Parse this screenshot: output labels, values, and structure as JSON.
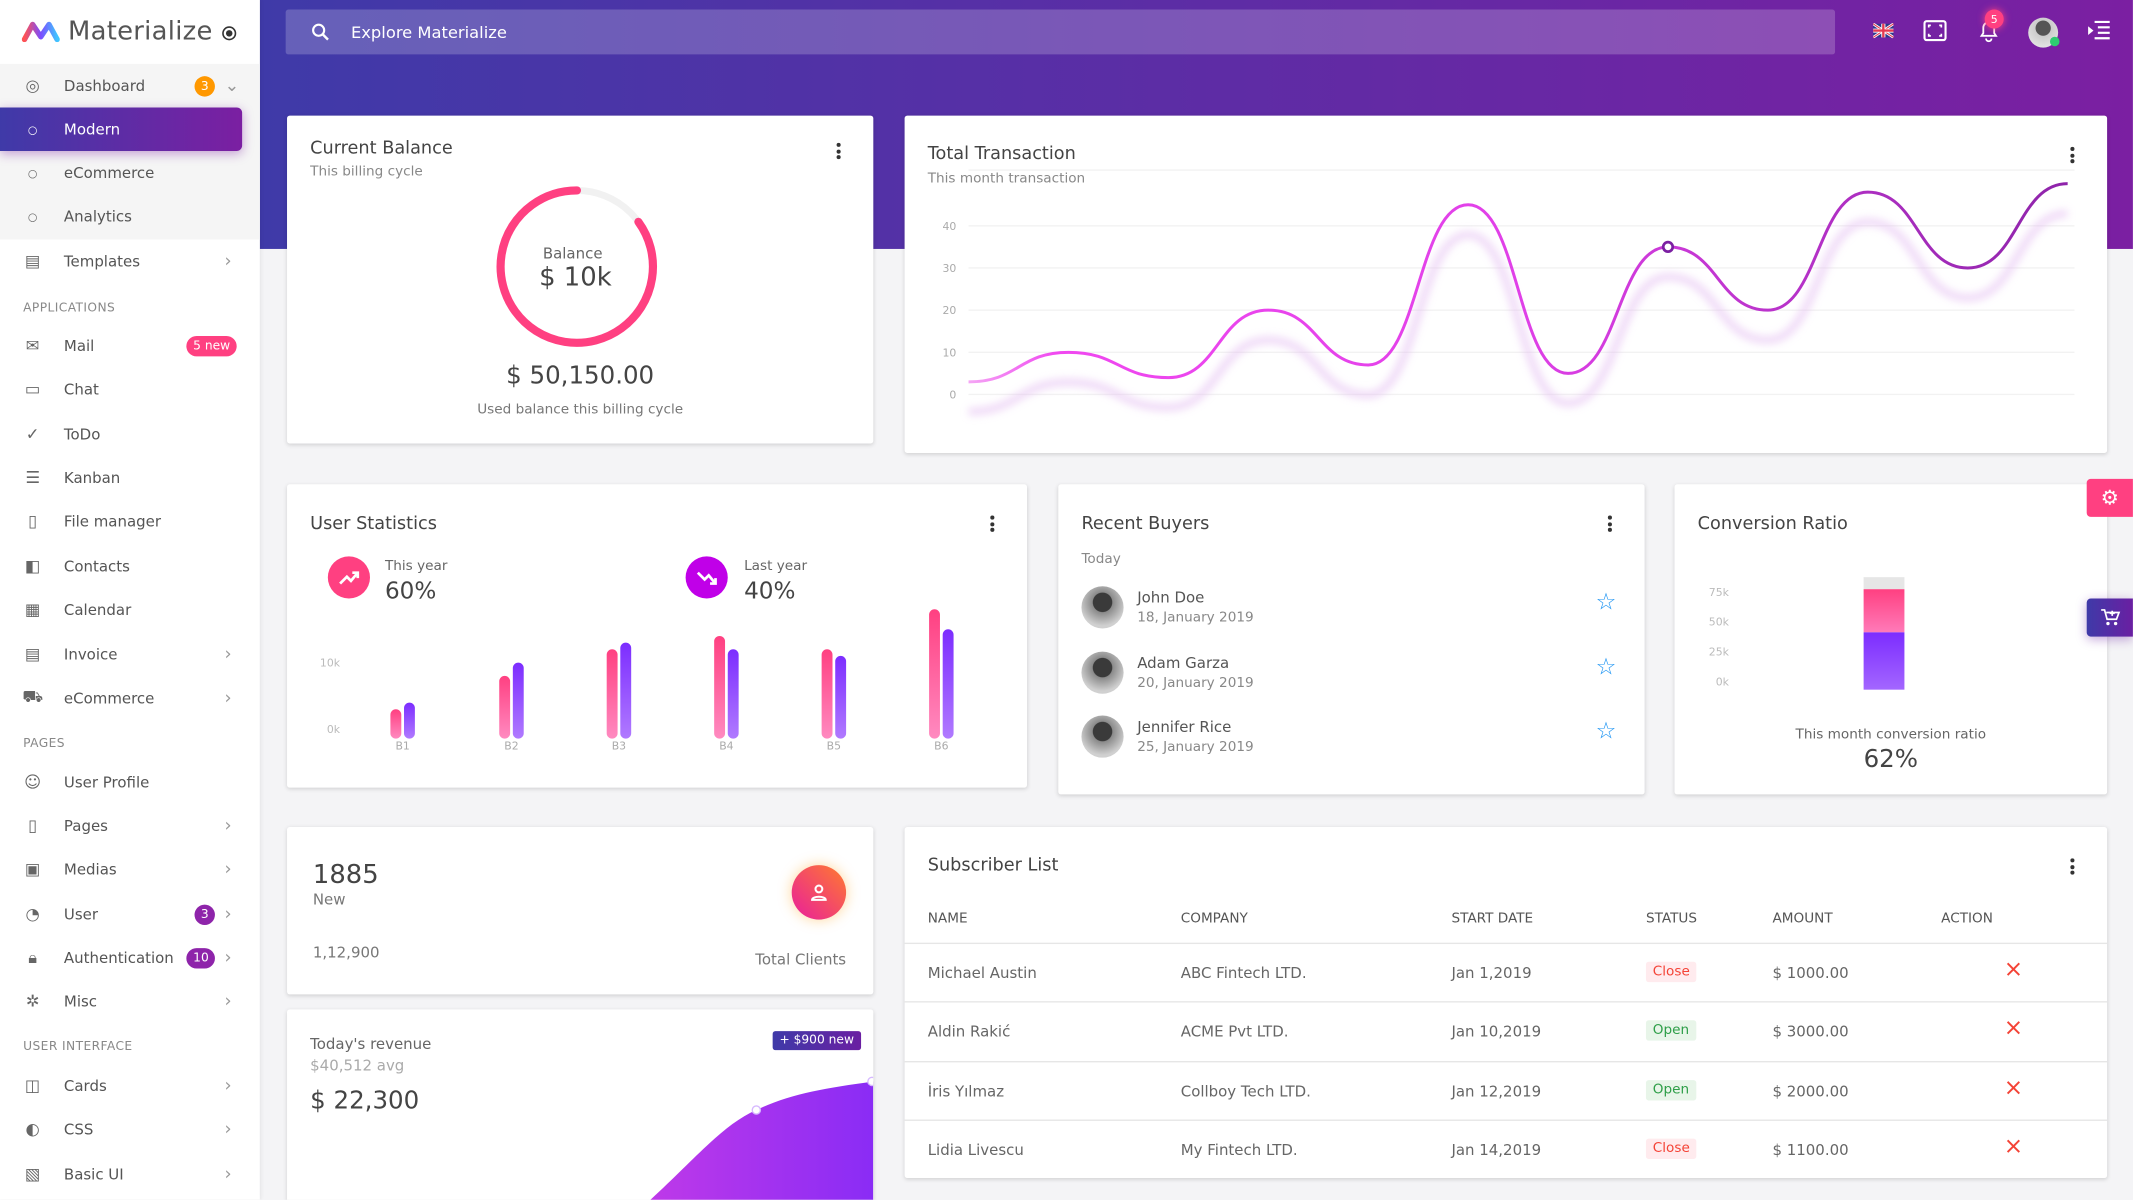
{
  "app": {
    "title": "Materialize"
  },
  "colors": {
    "primary_start": "#3f3aa8",
    "primary_end": "#7b1fa2",
    "pink": "#ff4081",
    "orange": "#ff9800",
    "green": "#4caf50",
    "red": "#f44336"
  },
  "sidebar": {
    "dashboard": {
      "label": "Dashboard",
      "badge": "3",
      "icon": "dashboard-icon"
    },
    "dashboard_items": [
      {
        "label": "Modern",
        "active": true
      },
      {
        "label": "eCommerce"
      },
      {
        "label": "Analytics"
      }
    ],
    "templates": {
      "label": "Templates",
      "icon": "templates-icon"
    },
    "sections": {
      "applications": "APPLICATIONS",
      "pages": "PAGES",
      "user_interface": "USER INTERFACE"
    },
    "applications": [
      {
        "label": "Mail",
        "icon": "mail-icon",
        "badge": "5 new"
      },
      {
        "label": "Chat",
        "icon": "chat-icon"
      },
      {
        "label": "ToDo",
        "icon": "check-icon"
      },
      {
        "label": "Kanban",
        "icon": "list-icon"
      },
      {
        "label": "File manager",
        "icon": "clipboard-icon"
      },
      {
        "label": "Contacts",
        "icon": "contacts-icon"
      },
      {
        "label": "Calendar",
        "icon": "calendar-icon"
      },
      {
        "label": "Invoice",
        "icon": "invoice-icon",
        "chevron": true
      },
      {
        "label": "eCommerce",
        "icon": "cart-icon",
        "chevron": true
      }
    ],
    "pages": [
      {
        "label": "User Profile",
        "icon": "user-icon"
      },
      {
        "label": "Pages",
        "icon": "pages-icon",
        "chevron": true
      },
      {
        "label": "Medias",
        "icon": "media-icon",
        "chevron": true
      },
      {
        "label": "User",
        "icon": "face-icon",
        "badge": "3",
        "chevron": true
      },
      {
        "label": "Authentication",
        "icon": "lock-icon",
        "badge": "10",
        "chevron": true
      },
      {
        "label": "Misc",
        "icon": "misc-icon",
        "chevron": true
      }
    ],
    "ui": [
      {
        "label": "Cards",
        "icon": "cards-icon",
        "chevron": true
      },
      {
        "label": "CSS",
        "icon": "css-icon",
        "chevron": true
      },
      {
        "label": "Basic UI",
        "icon": "basic-ui-icon",
        "chevron": true
      }
    ]
  },
  "header": {
    "search_placeholder": "Explore Materialize",
    "notifications": "5"
  },
  "balance": {
    "title": "Current Balance",
    "subtitle": "This billing cycle",
    "donut_label": "Balance",
    "donut_value": "$ 10k",
    "donut_progress": 0.85,
    "amount": "$ 50,150.00",
    "caption": "Used balance this billing cycle"
  },
  "transactions": {
    "title": "Total Transaction",
    "subtitle": "This month transaction"
  },
  "user_stats": {
    "title": "User Statistics",
    "this_year_label": "This year",
    "this_year_value": "60%",
    "last_year_label": "Last year",
    "last_year_value": "40%"
  },
  "buyers": {
    "title": "Recent Buyers",
    "today": "Today",
    "items": [
      {
        "name": "John Doe",
        "date": "18, January 2019"
      },
      {
        "name": "Adam Garza",
        "date": "20, January 2019"
      },
      {
        "name": "Jennifer Rice",
        "date": "25, January 2019"
      }
    ]
  },
  "conversion": {
    "title": "Conversion Ratio",
    "caption": "This month conversion ratio",
    "value": "62%"
  },
  "clients": {
    "count": "1885",
    "count_label": "New",
    "total": "1,12,900",
    "label": "Total Clients"
  },
  "revenue": {
    "title": "Today's revenue",
    "avg": "$40,512 avg",
    "value": "$ 22,300",
    "badge": "+ $900 new"
  },
  "subscribers": {
    "title": "Subscriber List",
    "columns": [
      "NAME",
      "COMPANY",
      "START DATE",
      "STATUS",
      "AMOUNT",
      "ACTION"
    ],
    "rows": [
      {
        "name": "Michael Austin",
        "company": "ABC Fintech LTD.",
        "date": "Jan 1,2019",
        "status": "Close",
        "amount": "$ 1000.00"
      },
      {
        "name": "Aldin Rakić",
        "company": "ACME Pvt LTD.",
        "date": "Jan 10,2019",
        "status": "Open",
        "amount": "$ 3000.00"
      },
      {
        "name": "İris Yılmaz",
        "company": "Collboy Tech LTD.",
        "date": "Jan 12,2019",
        "status": "Open",
        "amount": "$ 2000.00"
      },
      {
        "name": "Lidia Livescu",
        "company": "My Fintech LTD.",
        "date": "Jan 14,2019",
        "status": "Close",
        "amount": "$ 1100.00"
      }
    ]
  },
  "chart_data": [
    {
      "type": "line",
      "name": "transactions",
      "y_ticks": [
        "0",
        "10",
        "20",
        "30",
        "40"
      ],
      "ylim": [
        0,
        50
      ],
      "grid": true,
      "values": [
        3,
        10,
        4,
        20,
        7,
        45,
        5,
        35,
        20,
        48,
        30,
        50
      ],
      "highlight_index": 7
    },
    {
      "type": "bar",
      "name": "user-statistics",
      "categories": [
        "B1",
        "B2",
        "B3",
        "B4",
        "B5",
        "B6"
      ],
      "y_ticks": [
        "0k",
        "10k"
      ],
      "unit": "k",
      "series": [
        {
          "values": [
            4,
            9,
            13,
            15,
            13,
            19
          ],
          "color": "#ff4081"
        },
        {
          "values": [
            5,
            11,
            14,
            13,
            12,
            16
          ],
          "color": "#7c4dff"
        }
      ]
    },
    {
      "type": "bar",
      "name": "conversion",
      "stacked": true,
      "y_ticks": [
        "0k",
        "25k",
        "50k",
        "75k"
      ],
      "unit": "k",
      "ylim": [
        0,
        75
      ],
      "segments": [
        {
          "value": 48,
          "color": "#7c4dff"
        },
        {
          "value": 36,
          "color": "#ff4081"
        },
        {
          "value": 10,
          "color": "#e0e0e0"
        }
      ]
    }
  ]
}
